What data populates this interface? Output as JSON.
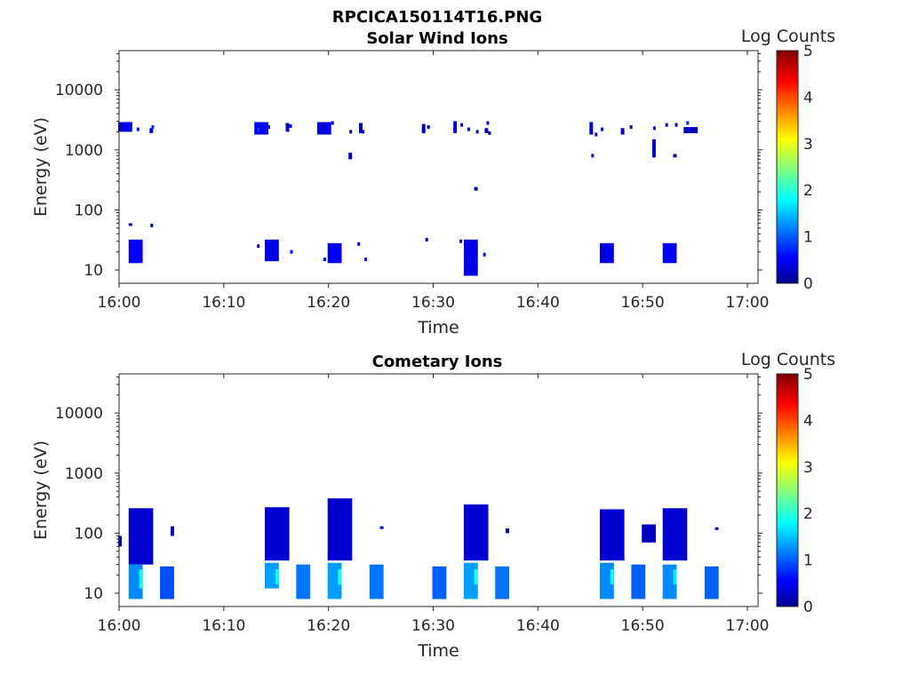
{
  "figure": {
    "filename_title": "RPCICA150114T16.PNG"
  },
  "colors": {
    "colormap": "jet",
    "dark_blue": "#00008f",
    "blue": "#0000ff",
    "mid_blue": "#0060ff",
    "light_blue": "#00a0ff",
    "cyan": "#00e5ff",
    "axis": "#262626"
  },
  "chart_data": [
    {
      "type": "heatmap",
      "title": "Solar Wind Ions",
      "xlabel": "Time",
      "ylabel": "Energy (eV)",
      "yscale": "log",
      "xlim": [
        "16:00",
        "17:00"
      ],
      "ylim": [
        6,
        45000
      ],
      "xticks": [
        "16:00",
        "16:10",
        "16:20",
        "16:30",
        "16:40",
        "16:50",
        "17:00"
      ],
      "yticks": [
        "10",
        "100",
        "1000",
        "10000"
      ],
      "colorbar": {
        "label": "Log Counts",
        "min": 0,
        "max": 5,
        "ticks": [
          "0",
          "1",
          "2",
          "3",
          "4",
          "5"
        ]
      },
      "grid": false,
      "cells": [
        {
          "t": 16.0,
          "e": 2600,
          "c": 0.5
        },
        {
          "t": 16.1,
          "e": 2400,
          "c": 0.8
        },
        {
          "t": 16.2,
          "e": 2200,
          "c": 0.9
        },
        {
          "t": 16.3,
          "e": 2500,
          "c": 0.6
        },
        {
          "t": 16.4,
          "e": 2700,
          "c": 0.3
        },
        {
          "t": 16.0,
          "e": 2000,
          "c": 0.2
        },
        {
          "t": 16.2,
          "e": 2000,
          "c": 0.4
        },
        {
          "t": 16.5,
          "e": 2400,
          "c": 0.5
        },
        {
          "t": 16.7,
          "e": 2600,
          "c": 0.3
        },
        {
          "t": 16.1,
          "e": 2000,
          "c": 0.3
        },
        {
          "t": 16.3,
          "e": 1900,
          "c": 0.2
        },
        {
          "t": 16.5,
          "e": 1800,
          "c": 0.4
        },
        {
          "t": 16.9,
          "e": 2400,
          "c": 0.3
        },
        {
          "t": 16.0,
          "e": 2300,
          "c": 0.4
        },
        {
          "t": 16.1,
          "e": 2600,
          "c": 0.6
        },
        {
          "t": 16.2,
          "e": 2800,
          "c": 0.8
        },
        {
          "t": 16.8,
          "e": 2200,
          "c": 0.7
        },
        {
          "t": 16.0,
          "e": 2700,
          "c": 0.6
        },
        {
          "t": 16.2,
          "e": 2400,
          "c": 0.4
        },
        {
          "t": 16.3,
          "e": 2800,
          "c": 0.5
        },
        {
          "t": 16.3,
          "e": 2200,
          "c": 0.3
        },
        {
          "t": 16.0,
          "e": 2200,
          "c": 0.5
        },
        {
          "t": 16.2,
          "e": 2600,
          "c": 0.4
        },
        {
          "t": 16.0,
          "e": 2200,
          "c": 0.3
        },
        {
          "t": 16.0,
          "e": 55,
          "c": 0.3
        },
        {
          "t": 16.2,
          "e": 25,
          "c": 0.6
        },
        {
          "t": 16.4,
          "e": 20,
          "c": 0.7
        },
        {
          "t": 16.6,
          "e": 15,
          "c": 0.6
        },
        {
          "t": 16.9,
          "e": 27,
          "c": 0.5
        },
        {
          "t": 16.5,
          "e": 15,
          "c": 0.7
        },
        {
          "t": 16.3,
          "e": 32,
          "c": 0.3
        },
        {
          "t": 16.6,
          "e": 30,
          "c": 0.4
        },
        {
          "t": 16.9,
          "e": 18,
          "c": 0.4
        },
        {
          "t": 16.1,
          "e": 2800,
          "c": 0.5
        },
        {
          "t": 16.1,
          "e": 800,
          "c": 0.4
        }
      ],
      "bursts": [
        {
          "start": "16:00",
          "end": "16:01",
          "emin": 2000,
          "emax": 2900,
          "c": 0.5
        },
        {
          "start": "16:03",
          "end": "16:03",
          "emin": 1900,
          "emax": 2300,
          "c": 0.3
        },
        {
          "start": "16:13",
          "end": "16:14",
          "emin": 1800,
          "emax": 2900,
          "c": 0.6
        },
        {
          "start": "16:16",
          "end": "16:16",
          "emin": 2000,
          "emax": 2800,
          "c": 0.3
        },
        {
          "start": "16:19",
          "end": "16:20",
          "emin": 1800,
          "emax": 2900,
          "c": 0.5
        },
        {
          "start": "16:22",
          "end": "16:22",
          "emin": 700,
          "emax": 900,
          "c": 0.3
        },
        {
          "start": "16:23",
          "end": "16:23",
          "emin": 1900,
          "emax": 2800,
          "c": 0.3
        },
        {
          "start": "16:29",
          "end": "16:29",
          "emin": 1900,
          "emax": 2700,
          "c": 0.3
        },
        {
          "start": "16:32",
          "end": "16:32",
          "emin": 1900,
          "emax": 3000,
          "c": 0.4
        },
        {
          "start": "16:34",
          "end": "16:34",
          "emin": 210,
          "emax": 240,
          "c": 0.2
        },
        {
          "start": "16:35",
          "end": "16:35",
          "emin": 1900,
          "emax": 2300,
          "c": 0.3
        },
        {
          "start": "16:45",
          "end": "16:45",
          "emin": 1800,
          "emax": 2900,
          "c": 0.4
        },
        {
          "start": "16:48",
          "end": "16:48",
          "emin": 1800,
          "emax": 2300,
          "c": 0.3
        },
        {
          "start": "16:51",
          "end": "16:51",
          "emin": 750,
          "emax": 1500,
          "c": 0.3
        },
        {
          "start": "16:53",
          "end": "16:53",
          "emin": 750,
          "emax": 850,
          "c": 0.2
        },
        {
          "start": "16:54",
          "end": "16:55",
          "emin": 1900,
          "emax": 2400,
          "c": 0.3
        },
        {
          "start": "16:01",
          "end": "16:01",
          "emin": 55,
          "emax": 60,
          "c": 0.3
        },
        {
          "start": "16:01",
          "end": "16:02",
          "emin": 13,
          "emax": 32,
          "c": 0.6
        },
        {
          "start": "16:14",
          "end": "16:15",
          "emin": 14,
          "emax": 32,
          "c": 0.5
        },
        {
          "start": "16:20",
          "end": "16:21",
          "emin": 13,
          "emax": 28,
          "c": 0.6
        },
        {
          "start": "16:33",
          "end": "16:34",
          "emin": 8,
          "emax": 32,
          "c": 0.5
        },
        {
          "start": "16:46",
          "end": "16:47",
          "emin": 13,
          "emax": 28,
          "c": 0.5
        },
        {
          "start": "16:52",
          "end": "16:53",
          "emin": 13,
          "emax": 28,
          "c": 0.6
        }
      ]
    },
    {
      "type": "heatmap",
      "title": "Cometary Ions",
      "xlabel": "Time",
      "ylabel": "Energy (eV)",
      "yscale": "log",
      "xlim": [
        "16:00",
        "17:00"
      ],
      "ylim": [
        6,
        45000
      ],
      "xticks": [
        "16:00",
        "16:10",
        "16:20",
        "16:30",
        "16:40",
        "16:50",
        "17:00"
      ],
      "yticks": [
        "10",
        "100",
        "1000",
        "10000"
      ],
      "colorbar": {
        "label": "Log Counts",
        "min": 0,
        "max": 5,
        "ticks": [
          "0",
          "1",
          "2",
          "3",
          "4",
          "5"
        ]
      },
      "grid": false,
      "cells": [],
      "bursts": [
        {
          "start": "16:00",
          "end": "16:00",
          "emin": 60,
          "emax": 90,
          "c": 0.4
        },
        {
          "start": "16:01",
          "end": "16:03",
          "emin": 30,
          "emax": 260,
          "c": 0.4
        },
        {
          "start": "16:01",
          "end": "16:02",
          "emin": 8,
          "emax": 30,
          "c": 1.3
        },
        {
          "start": "16:02",
          "end": "16:02",
          "emin": 12,
          "emax": 25,
          "c": 1.9
        },
        {
          "start": "16:05",
          "end": "16:05",
          "emin": 90,
          "emax": 130,
          "c": 0.3
        },
        {
          "start": "16:04",
          "end": "16:05",
          "emin": 8,
          "emax": 28,
          "c": 1.0
        },
        {
          "start": "16:14",
          "end": "16:16",
          "emin": 35,
          "emax": 270,
          "c": 0.4
        },
        {
          "start": "16:14",
          "end": "16:15",
          "emin": 12,
          "emax": 32,
          "c": 1.4
        },
        {
          "start": "16:15",
          "end": "16:15",
          "emin": 14,
          "emax": 25,
          "c": 1.9
        },
        {
          "start": "16:17",
          "end": "16:18",
          "emin": 8,
          "emax": 30,
          "c": 1.2
        },
        {
          "start": "16:20",
          "end": "16:22",
          "emin": 35,
          "emax": 380,
          "c": 0.4
        },
        {
          "start": "16:20",
          "end": "16:21",
          "emin": 8,
          "emax": 32,
          "c": 1.4
        },
        {
          "start": "16:21",
          "end": "16:21",
          "emin": 14,
          "emax": 25,
          "c": 2.0
        },
        {
          "start": "16:24",
          "end": "16:25",
          "emin": 8,
          "emax": 30,
          "c": 1.2
        },
        {
          "start": "16:25",
          "end": "16:25",
          "emin": 120,
          "emax": 130,
          "c": 0.3
        },
        {
          "start": "16:30",
          "end": "16:31",
          "emin": 8,
          "emax": 28,
          "c": 1.1
        },
        {
          "start": "16:33",
          "end": "16:35",
          "emin": 35,
          "emax": 300,
          "c": 0.4
        },
        {
          "start": "16:33",
          "end": "16:34",
          "emin": 8,
          "emax": 32,
          "c": 1.4
        },
        {
          "start": "16:34",
          "end": "16:34",
          "emin": 14,
          "emax": 25,
          "c": 2.0
        },
        {
          "start": "16:36",
          "end": "16:37",
          "emin": 8,
          "emax": 28,
          "c": 1.2
        },
        {
          "start": "16:37",
          "end": "16:37",
          "emin": 100,
          "emax": 120,
          "c": 0.3
        },
        {
          "start": "16:46",
          "end": "16:48",
          "emin": 35,
          "emax": 250,
          "c": 0.4
        },
        {
          "start": "16:46",
          "end": "16:47",
          "emin": 8,
          "emax": 32,
          "c": 1.3
        },
        {
          "start": "16:47",
          "end": "16:47",
          "emin": 14,
          "emax": 25,
          "c": 1.9
        },
        {
          "start": "16:49",
          "end": "16:50",
          "emin": 8,
          "emax": 30,
          "c": 1.1
        },
        {
          "start": "16:50",
          "end": "16:51",
          "emin": 70,
          "emax": 140,
          "c": 0.3
        },
        {
          "start": "16:52",
          "end": "16:54",
          "emin": 35,
          "emax": 260,
          "c": 0.4
        },
        {
          "start": "16:52",
          "end": "16:53",
          "emin": 8,
          "emax": 30,
          "c": 1.3
        },
        {
          "start": "16:53",
          "end": "16:53",
          "emin": 14,
          "emax": 25,
          "c": 1.8
        },
        {
          "start": "16:56",
          "end": "16:57",
          "emin": 8,
          "emax": 28,
          "c": 1.1
        },
        {
          "start": "16:57",
          "end": "16:57",
          "emin": 115,
          "emax": 125,
          "c": 0.3
        }
      ]
    }
  ]
}
